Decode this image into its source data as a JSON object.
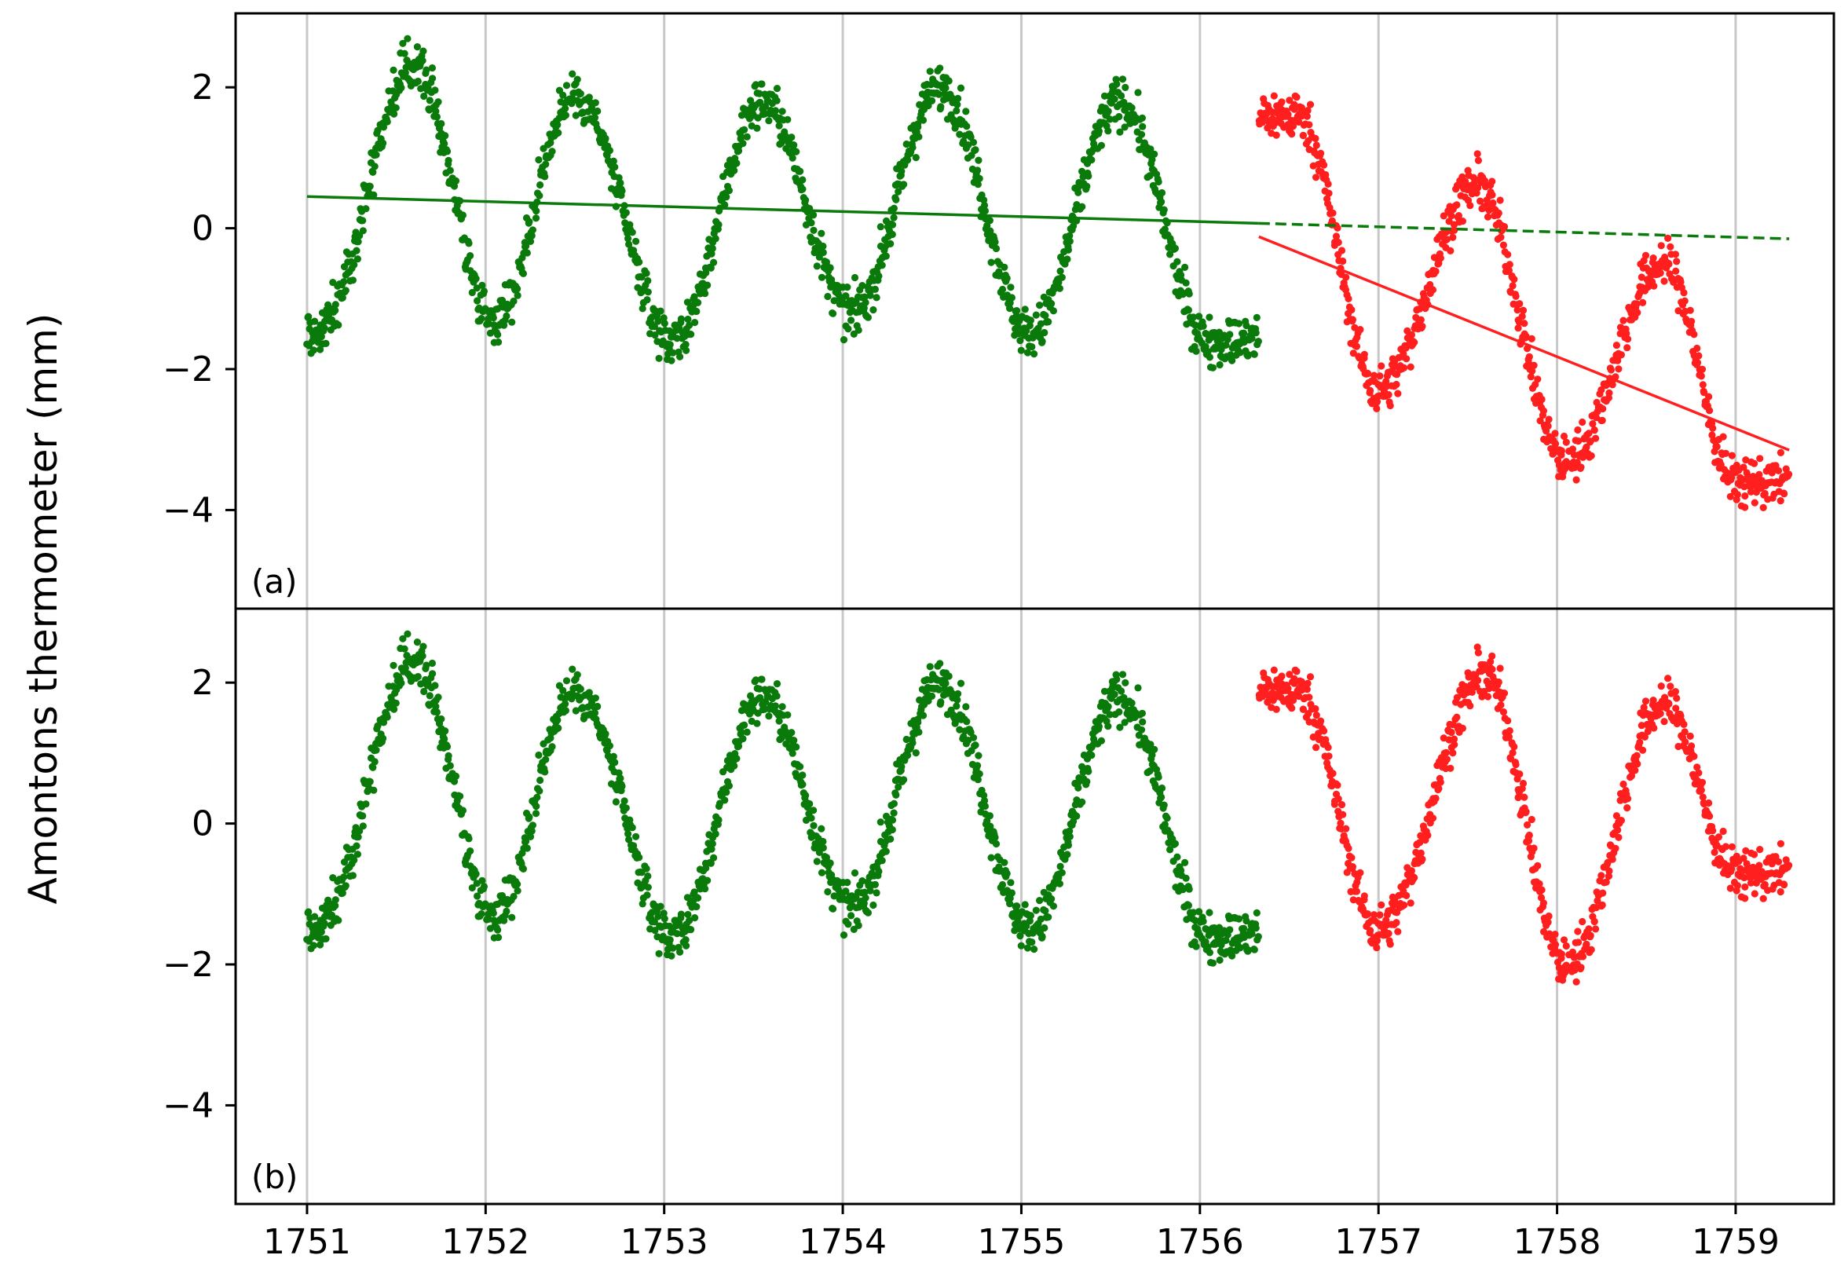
{
  "chart_data": [
    {
      "panel": "(a)",
      "type": "scatter",
      "ylabel": "Amontons thermometer (mm)",
      "xlim": [
        1750.6,
        1759.55
      ],
      "ylim": [
        -5.4,
        3.05
      ],
      "xticks": [
        1751,
        1752,
        1753,
        1754,
        1755,
        1756,
        1757,
        1758,
        1759
      ],
      "yticks": [
        2,
        0,
        -2,
        -4
      ],
      "ytick_labels": [
        "2",
        "0",
        "−2",
        "−4"
      ],
      "xgrid": true,
      "colors": {
        "early": "#0a7a0a",
        "late": "#ff1f1f"
      },
      "series": [
        {
          "x_range": [
            1751.0,
            1756.33
          ],
          "color": "#0a7a0a",
          "peaks": [
            [
              1751.6,
              2.3
            ],
            [
              1752.5,
              1.9
            ],
            [
              1753.55,
              1.8
            ],
            [
              1754.55,
              2.0
            ],
            [
              1755.55,
              1.8
            ]
          ],
          "troughs": [
            [
              1751.05,
              -1.5
            ],
            [
              1752.05,
              -1.3
            ],
            [
              1753.05,
              -1.6
            ],
            [
              1754.05,
              -1.2
            ],
            [
              1755.05,
              -1.5
            ],
            [
              1756.05,
              -1.6
            ]
          ]
        },
        {
          "x_range": [
            1756.33,
            1759.3
          ],
          "color": "#ff1f1f",
          "peaks": [
            [
              1756.55,
              1.6
            ],
            [
              1757.55,
              0.6
            ],
            [
              1758.6,
              -0.5
            ]
          ],
          "troughs": [
            [
              1757.0,
              -2.3
            ],
            [
              1758.05,
              -3.3
            ],
            [
              1759.0,
              -3.6
            ]
          ]
        }
      ],
      "trend_lines": [
        {
          "x": [
            1751.0,
            1756.33
          ],
          "y": [
            0.45,
            0.07
          ],
          "color": "#0a7a0a",
          "style": "solid"
        },
        {
          "x": [
            1756.33,
            1759.3
          ],
          "y": [
            0.07,
            -0.15
          ],
          "color": "#0a7a0a",
          "style": "dashed"
        },
        {
          "x": [
            1756.33,
            1759.3
          ],
          "y": [
            -0.12,
            -3.15
          ],
          "color": "#ff1f1f",
          "style": "solid"
        }
      ]
    },
    {
      "panel": "(b)",
      "type": "scatter",
      "xlim": [
        1750.6,
        1759.55
      ],
      "ylim": [
        -5.4,
        3.05
      ],
      "xticks": [
        1751,
        1752,
        1753,
        1754,
        1755,
        1756,
        1757,
        1758,
        1759
      ],
      "yticks": [
        2,
        0,
        -2,
        -4
      ],
      "ytick_labels": [
        "2",
        "0",
        "−2",
        "−4"
      ],
      "xgrid": true,
      "series": [
        {
          "x_range": [
            1751.0,
            1756.33
          ],
          "color": "#0a7a0a",
          "peaks": [
            [
              1751.6,
              2.3
            ],
            [
              1752.5,
              1.9
            ],
            [
              1753.55,
              1.8
            ],
            [
              1754.55,
              2.0
            ],
            [
              1755.55,
              1.8
            ]
          ],
          "troughs": [
            [
              1751.05,
              -1.5
            ],
            [
              1752.05,
              -1.3
            ],
            [
              1753.05,
              -1.6
            ],
            [
              1754.05,
              -1.2
            ],
            [
              1755.05,
              -1.5
            ],
            [
              1756.05,
              -1.6
            ]
          ]
        },
        {
          "x_range": [
            1756.33,
            1759.3
          ],
          "color": "#ff1f1f",
          "peaks": [
            [
              1756.55,
              1.9
            ],
            [
              1757.6,
              2.1
            ],
            [
              1758.6,
              1.7
            ]
          ],
          "troughs": [
            [
              1757.0,
              -1.5
            ],
            [
              1758.05,
              -2.0
            ],
            [
              1759.0,
              -0.7
            ]
          ]
        }
      ]
    }
  ]
}
